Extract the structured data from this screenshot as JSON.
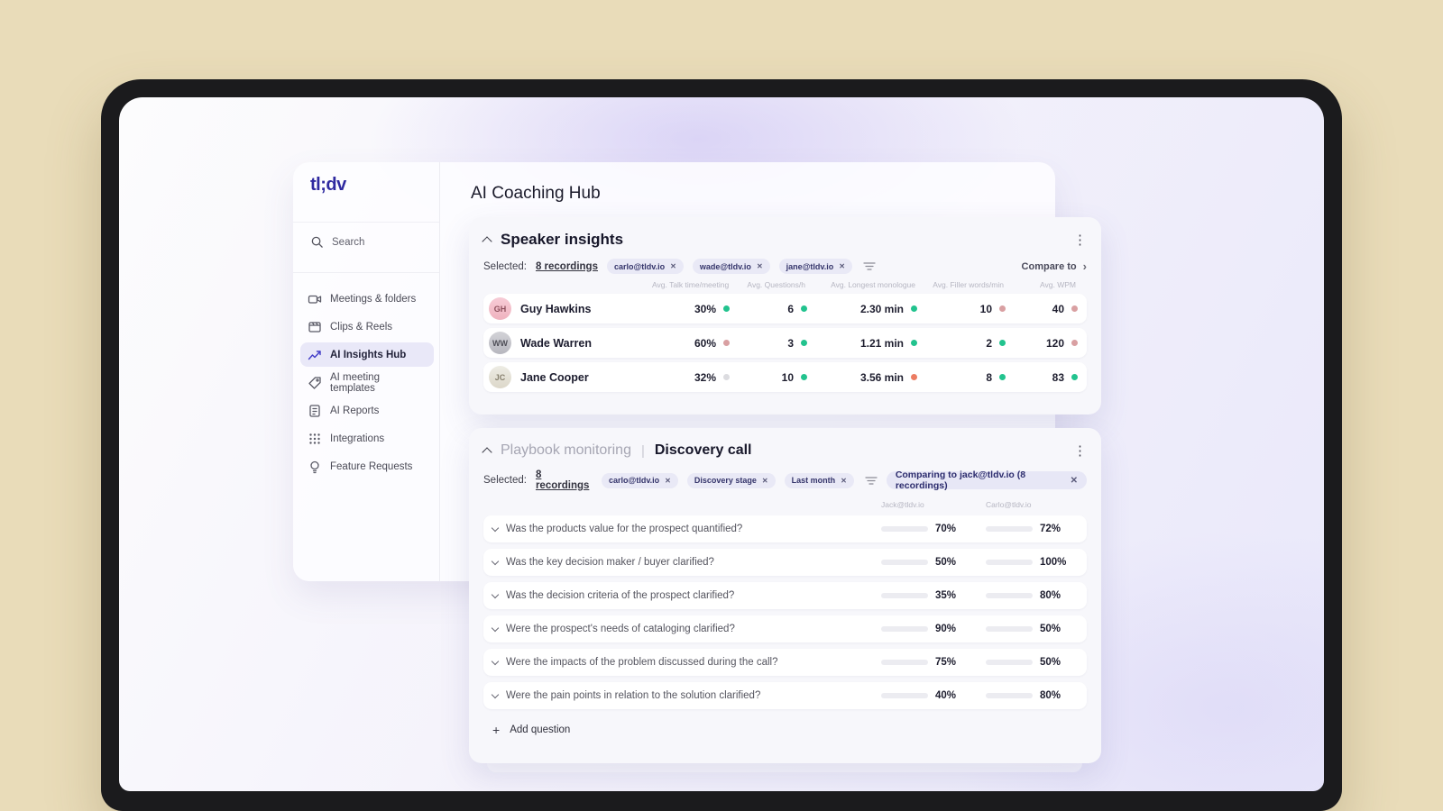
{
  "app": {
    "logo_text": "tl;dv",
    "page_title": "AI Coaching Hub"
  },
  "icons": {
    "kebab": "⋮",
    "plus": "+",
    "close": "✕",
    "chevron_right": "›"
  },
  "sidebar": {
    "search_label": "Search",
    "items": [
      {
        "label": "Meetings & folders",
        "icon": "video-camera-icon"
      },
      {
        "label": "Clips & Reels",
        "icon": "clapperboard-icon"
      },
      {
        "label": "AI Insights Hub",
        "icon": "insights-chart-icon",
        "active": true
      },
      {
        "label": "AI meeting templates",
        "icon": "template-tag-icon"
      },
      {
        "label": "AI Reports",
        "icon": "report-icon"
      },
      {
        "label": "Integrations",
        "icon": "grid-dots-icon"
      },
      {
        "label": "Feature Requests",
        "icon": "lightbulb-icon"
      }
    ]
  },
  "speaker_insights": {
    "title": "Speaker insights",
    "selected_label": "Selected:",
    "selected_count": "8 recordings",
    "chips": [
      "carlo@tldv.io",
      "wade@tldv.io",
      "jane@tldv.io"
    ],
    "compare_label": "Compare to",
    "columns": [
      "Avg. Talk time/meeting",
      "Avg. Questions/h",
      "Avg. Longest monologue",
      "Avg. Filler words/min",
      "Avg. WPM"
    ],
    "rows": [
      {
        "name": "Guy Hawkins",
        "initials": "GH",
        "avatar_tone": "pink",
        "metrics": [
          {
            "value": "30%",
            "dot": "green"
          },
          {
            "value": "6",
            "dot": "green"
          },
          {
            "value": "2.30 min",
            "dot": "green"
          },
          {
            "value": "10",
            "dot": "pink"
          },
          {
            "value": "40",
            "dot": "pink"
          }
        ]
      },
      {
        "name": "Wade Warren",
        "initials": "WW",
        "avatar_tone": "gray",
        "metrics": [
          {
            "value": "60%",
            "dot": "pink"
          },
          {
            "value": "3",
            "dot": "green"
          },
          {
            "value": "1.21 min",
            "dot": "green"
          },
          {
            "value": "2",
            "dot": "green"
          },
          {
            "value": "120",
            "dot": "pink"
          }
        ]
      },
      {
        "name": "Jane Cooper",
        "initials": "JC",
        "avatar_tone": "beige",
        "metrics": [
          {
            "value": "32%",
            "dot": "gray"
          },
          {
            "value": "10",
            "dot": "green"
          },
          {
            "value": "3.56 min",
            "dot": "red"
          },
          {
            "value": "8",
            "dot": "green"
          },
          {
            "value": "83",
            "dot": "green"
          }
        ]
      }
    ]
  },
  "playbook": {
    "title_muted": "Playbook monitoring",
    "separator": "|",
    "title": "Discovery call",
    "selected_label": "Selected:",
    "selected_count": "8 recordings",
    "chips": [
      "carlo@tldv.io",
      "Discovery stage",
      "Last month"
    ],
    "comparing_chip": "Comparing to jack@tldv.io (8 recordings)",
    "columns": [
      "Jack@tldv.io",
      "Carlo@tldv.io"
    ],
    "questions": [
      {
        "text": "Was the products value for the prospect quantified?",
        "left": {
          "pct": 70,
          "label": "70%",
          "color": "green"
        },
        "right": {
          "pct": 72,
          "label": "72%",
          "color": "green"
        }
      },
      {
        "text": "Was the key decision maker / buyer clarified?",
        "left": {
          "pct": 50,
          "label": "50%",
          "color": "pink"
        },
        "right": {
          "pct": 100,
          "label": "100%",
          "color": "green"
        }
      },
      {
        "text": "Was the decision criteria of the prospect clarified?",
        "left": {
          "pct": 35,
          "label": "35%",
          "color": "pink"
        },
        "right": {
          "pct": 80,
          "label": "80%",
          "color": "green"
        }
      },
      {
        "text": "Were the prospect's needs of cataloging clarified?",
        "left": {
          "pct": 90,
          "label": "90%",
          "color": "green"
        },
        "right": {
          "pct": 50,
          "label": "50%",
          "color": "pink"
        }
      },
      {
        "text": "Were the impacts of the problem discussed during the call?",
        "left": {
          "pct": 75,
          "label": "75%",
          "color": "green"
        },
        "right": {
          "pct": 50,
          "label": "50%",
          "color": "pink"
        }
      },
      {
        "text": "Were the pain points in relation to the solution clarified?",
        "left": {
          "pct": 40,
          "label": "40%",
          "color": "pink"
        },
        "right": {
          "pct": 80,
          "label": "80%",
          "color": "green"
        }
      }
    ],
    "add_question_label": "Add question"
  },
  "colors": {
    "desk_background": "#e9dcb9",
    "laptop_frame": "#1b1b1d",
    "accent_indigo": "#3d37c9",
    "positive_green": "#22c38e",
    "bar_pink": "#f2a9a0",
    "dot_red": "#ec7c62",
    "dot_muted_pink": "#d9a0a2",
    "dot_gray": "#dcdce0",
    "chip_background": "#e9e9f6",
    "chip_text": "#35356b"
  }
}
